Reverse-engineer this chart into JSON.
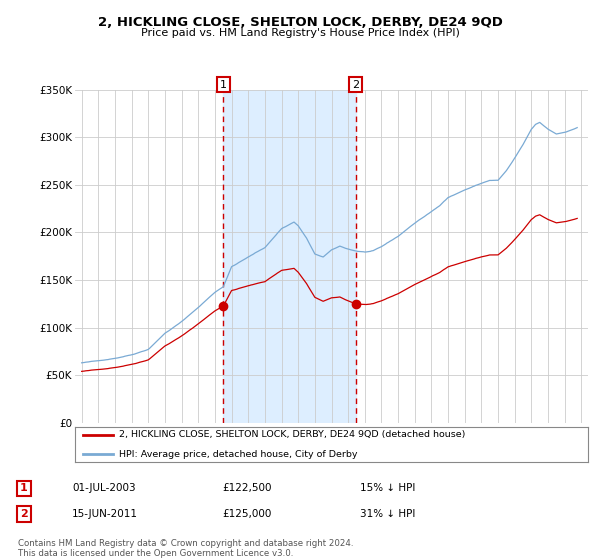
{
  "title": "2, HICKLING CLOSE, SHELTON LOCK, DERBY, DE24 9QD",
  "subtitle": "Price paid vs. HM Land Registry's House Price Index (HPI)",
  "legend_property": "2, HICKLING CLOSE, SHELTON LOCK, DERBY, DE24 9QD (detached house)",
  "legend_hpi": "HPI: Average price, detached house, City of Derby",
  "transaction1_date": "01-JUL-2003",
  "transaction1_price": 122500,
  "transaction1_pct": "15% ↓ HPI",
  "transaction2_date": "15-JUN-2011",
  "transaction2_price": 125000,
  "transaction2_pct": "31% ↓ HPI",
  "footnote": "Contains HM Land Registry data © Crown copyright and database right 2024.\nThis data is licensed under the Open Government Licence v3.0.",
  "hpi_color": "#7aaad4",
  "property_color": "#cc0000",
  "shade_color": "#ddeeff",
  "grid_color": "#cccccc",
  "plot_bg": "#ffffff",
  "ylim": [
    0,
    350000
  ],
  "yticks": [
    0,
    50000,
    100000,
    150000,
    200000,
    250000,
    300000,
    350000
  ],
  "t1_year": 2003.5,
  "t2_year": 2011.45,
  "price1": 122500,
  "price2": 125000
}
